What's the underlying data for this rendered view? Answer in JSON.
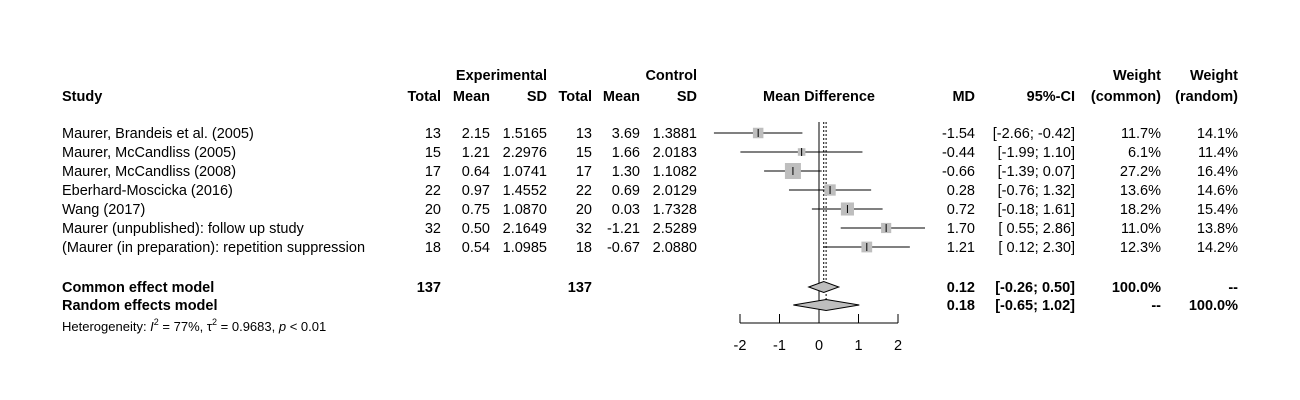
{
  "headers": {
    "study": "Study",
    "experimental": "Experimental",
    "control": "Control",
    "total": "Total",
    "mean": "Mean",
    "sd": "SD",
    "plot_title": "Mean Difference",
    "md": "MD",
    "ci": "95%-CI",
    "weight": "Weight",
    "weight_common": "(common)",
    "weight_random": "(random)"
  },
  "studies": [
    {
      "name": "Maurer, Brandeis et al. (2005)",
      "e_total": "13",
      "e_mean": "2.15",
      "e_sd": "1.5165",
      "c_total": "13",
      "c_mean": "3.69",
      "c_sd": "1.3881",
      "md_text": "-1.54",
      "ci_text": "[-2.66; -0.42]",
      "w_common": "11.7%",
      "w_random": "14.1%"
    },
    {
      "name": "Maurer, McCandliss (2005)",
      "e_total": "15",
      "e_mean": "1.21",
      "e_sd": "2.2976",
      "c_total": "15",
      "c_mean": "1.66",
      "c_sd": "2.0183",
      "md_text": "-0.44",
      "ci_text": "[-1.99; 1.10]",
      "w_common": "6.1%",
      "w_random": "11.4%"
    },
    {
      "name": "Maurer, McCandliss (2008)",
      "e_total": "17",
      "e_mean": "0.64",
      "e_sd": "1.0741",
      "c_total": "17",
      "c_mean": "1.30",
      "c_sd": "1.1082",
      "md_text": "-0.66",
      "ci_text": "[-1.39; 0.07]",
      "w_common": "27.2%",
      "w_random": "16.4%"
    },
    {
      "name": "Eberhard-Moscicka (2016)",
      "e_total": "22",
      "e_mean": "0.97",
      "e_sd": "1.4552",
      "c_total": "22",
      "c_mean": "0.69",
      "c_sd": "2.0129",
      "md_text": "0.28",
      "ci_text": "[-0.76; 1.32]",
      "w_common": "13.6%",
      "w_random": "14.6%"
    },
    {
      "name": "Wang (2017)",
      "e_total": "20",
      "e_mean": "0.75",
      "e_sd": "1.0870",
      "c_total": "20",
      "c_mean": "0.03",
      "c_sd": "1.7328",
      "md_text": "0.72",
      "ci_text": "[-0.18; 1.61]",
      "w_common": "18.2%",
      "w_random": "15.4%"
    },
    {
      "name": "Maurer (unpublished): follow up study",
      "e_total": "32",
      "e_mean": "0.50",
      "e_sd": "2.1649",
      "c_total": "32",
      "c_mean": "-1.21",
      "c_sd": "2.5289",
      "md_text": "1.70",
      "ci_text": "[ 0.55; 2.86]",
      "w_common": "11.0%",
      "w_random": "13.8%"
    },
    {
      "name": "(Maurer (in preparation): repetition suppression",
      "e_total": "18",
      "e_mean": "0.54",
      "e_sd": "1.0985",
      "c_total": "18",
      "c_mean": "-0.67",
      "c_sd": "2.0880",
      "md_text": "1.21",
      "ci_text": "[ 0.12; 2.30]",
      "w_common": "12.3%",
      "w_random": "14.2%"
    }
  ],
  "common": {
    "label": "Common effect model",
    "e_total": "137",
    "c_total": "137",
    "md_text": "0.12",
    "ci_text": "[-0.26; 0.50]",
    "w_common": "100.0%",
    "w_random": "--"
  },
  "random": {
    "label": "Random effects model",
    "md_text": "0.18",
    "ci_text": "[-0.65; 1.02]",
    "w_common": "--",
    "w_random": "100.0%"
  },
  "heterogeneity": {
    "prefix": "Heterogeneity: ",
    "i2_symbol": "I",
    "i2_value": " = 77%, ",
    "tau_symbol": "τ",
    "tau_value": " = 0.9683, ",
    "p_symbol": "p",
    "p_value": " < 0.01"
  },
  "chart_data": {
    "type": "forest",
    "title": "Mean Difference",
    "xlim": [
      -2,
      2
    ],
    "xticks": [
      "-2",
      "-1",
      "0",
      "1",
      "2"
    ],
    "null_line": 0,
    "studies": [
      {
        "md": -1.54,
        "lo": -2.66,
        "hi": -0.42,
        "weight_common": 11.7,
        "weight_random": 14.1
      },
      {
        "md": -0.44,
        "lo": -1.99,
        "hi": 1.1,
        "weight_common": 6.1,
        "weight_random": 11.4
      },
      {
        "md": -0.66,
        "lo": -1.39,
        "hi": 0.07,
        "weight_common": 27.2,
        "weight_random": 16.4
      },
      {
        "md": 0.28,
        "lo": -0.76,
        "hi": 1.32,
        "weight_common": 13.6,
        "weight_random": 14.6
      },
      {
        "md": 0.72,
        "lo": -0.18,
        "hi": 1.61,
        "weight_common": 18.2,
        "weight_random": 15.4
      },
      {
        "md": 1.7,
        "lo": 0.55,
        "hi": 2.86,
        "weight_common": 11.0,
        "weight_random": 13.8
      },
      {
        "md": 1.21,
        "lo": 0.12,
        "hi": 2.3,
        "weight_common": 12.3,
        "weight_random": 14.2
      }
    ],
    "common_effect": {
      "md": 0.12,
      "lo": -0.26,
      "hi": 0.5
    },
    "random_effects": {
      "md": 0.18,
      "lo": -0.65,
      "hi": 1.02
    },
    "colors": {
      "square": "#bebebe",
      "diamond": "#bebebe",
      "line": "#000000"
    }
  }
}
